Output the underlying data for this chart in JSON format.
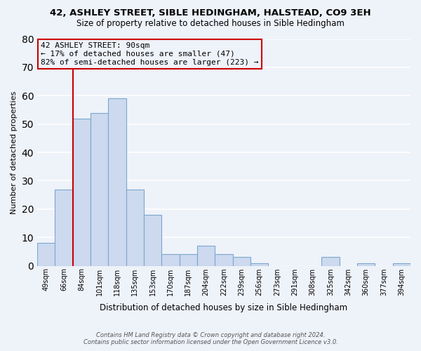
{
  "title": "42, ASHLEY STREET, SIBLE HEDINGHAM, HALSTEAD, CO9 3EH",
  "subtitle": "Size of property relative to detached houses in Sible Hedingham",
  "xlabel": "Distribution of detached houses by size in Sible Hedingham",
  "ylabel": "Number of detached properties",
  "bar_labels": [
    "49sqm",
    "66sqm",
    "84sqm",
    "101sqm",
    "118sqm",
    "135sqm",
    "153sqm",
    "170sqm",
    "187sqm",
    "204sqm",
    "222sqm",
    "239sqm",
    "256sqm",
    "273sqm",
    "291sqm",
    "308sqm",
    "325sqm",
    "342sqm",
    "360sqm",
    "377sqm",
    "394sqm"
  ],
  "bar_values": [
    8,
    27,
    52,
    54,
    59,
    27,
    18,
    4,
    4,
    7,
    4,
    3,
    1,
    0,
    0,
    0,
    3,
    0,
    1,
    0,
    1
  ],
  "bar_color": "#ccd9ee",
  "bar_edge_color": "#7ba7d0",
  "marker_value_index": 2,
  "marker_line_color": "#cc0000",
  "annotation_text": "42 ASHLEY STREET: 90sqm\n← 17% of detached houses are smaller (47)\n82% of semi-detached houses are larger (223) →",
  "annotation_box_edge_color": "#cc0000",
  "ylim": [
    0,
    80
  ],
  "yticks": [
    0,
    10,
    20,
    30,
    40,
    50,
    60,
    70,
    80
  ],
  "footer_line1": "Contains HM Land Registry data © Crown copyright and database right 2024.",
  "footer_line2": "Contains public sector information licensed under the Open Government Licence v3.0.",
  "background_color": "#eef2f9",
  "grid_color": "#ffffff"
}
